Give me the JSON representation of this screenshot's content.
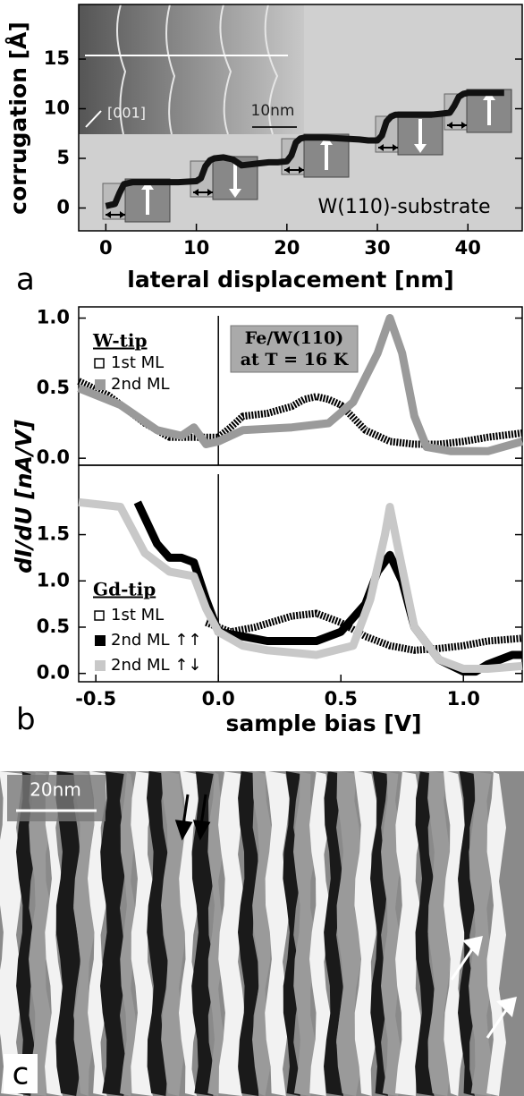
{
  "chart_data": [
    {
      "type": "line",
      "panel_label": "a",
      "x_label": "lateral displacement [nm]",
      "y_label": "corrugation [Å]",
      "annotation": "W(110)-substrate",
      "inset": {
        "direction_label": "[001]",
        "scale_bar": "10nm"
      },
      "xlim": [
        -3,
        46
      ],
      "ylim": [
        -2.3,
        20.5
      ],
      "xticks": [
        0,
        10,
        20,
        30,
        40
      ],
      "yticks": [
        0,
        5,
        10,
        15
      ],
      "x": [
        0,
        0.5,
        1,
        1.5,
        2,
        3,
        5,
        8,
        10,
        10.5,
        11,
        11.5,
        12,
        13,
        14,
        15,
        16,
        17,
        18,
        19,
        20,
        20.5,
        21,
        21.5,
        22,
        24,
        26,
        28,
        29,
        30,
        30.5,
        31,
        31.5,
        32,
        34,
        36,
        37,
        38,
        38.5,
        39,
        39.5,
        40,
        42,
        44
      ],
      "series": [
        {
          "color": "#111111",
          "values": [
            0.2,
            0.3,
            0.4,
            1.5,
            2.4,
            2.6,
            2.6,
            2.6,
            2.7,
            3.0,
            4.2,
            4.8,
            5.0,
            5.1,
            4.9,
            4.3,
            4.4,
            4.5,
            4.6,
            4.6,
            4.7,
            5.3,
            6.6,
            7.0,
            7.1,
            7.1,
            7.0,
            6.9,
            6.8,
            6.8,
            7.3,
            8.7,
            9.2,
            9.4,
            9.4,
            9.4,
            9.5,
            9.6,
            10.3,
            11.2,
            11.5,
            11.6,
            11.6,
            11.6
          ]
        }
      ]
    },
    {
      "type": "line",
      "y_label": "dI/dU [nA/V]",
      "legend_title": "W-tip",
      "annotation": [
        "Fe/W(110)",
        "at T = 16 K"
      ],
      "xlim": [
        -0.57,
        1.24
      ],
      "ylim": [
        -0.05,
        1.08
      ],
      "reference_x": 0,
      "yticks": [
        {
          "value": 0,
          "label": "0.0"
        },
        0.5,
        {
          "value": 1,
          "label": "1.0"
        }
      ],
      "series": [
        {
          "name": "1st ML",
          "color": "#000000",
          "marker": "open-square",
          "x": [
            -0.57,
            -0.45,
            -0.3,
            -0.2,
            -0.1,
            0,
            0.05,
            0.1,
            0.2,
            0.3,
            0.35,
            0.4,
            0.45,
            0.5,
            0.6,
            0.7,
            0.8,
            0.9,
            1.0,
            1.1,
            1.24
          ],
          "values": [
            0.55,
            0.45,
            0.25,
            0.15,
            0.15,
            0.15,
            0.22,
            0.3,
            0.32,
            0.37,
            0.42,
            0.44,
            0.42,
            0.38,
            0.2,
            0.12,
            0.1,
            0.1,
            0.12,
            0.15,
            0.18
          ]
        },
        {
          "name": "2nd ML",
          "color": "#9a9a9a",
          "marker": "filled-square",
          "x": [
            -0.57,
            -0.4,
            -0.25,
            -0.15,
            -0.1,
            -0.05,
            0,
            0.1,
            0.3,
            0.45,
            0.55,
            0.65,
            0.7,
            0.75,
            0.8,
            0.85,
            0.95,
            1.1,
            1.24
          ],
          "values": [
            0.5,
            0.38,
            0.2,
            0.16,
            0.22,
            0.1,
            0.12,
            0.2,
            0.22,
            0.25,
            0.4,
            0.75,
            1.0,
            0.75,
            0.3,
            0.08,
            0.05,
            0.05,
            0.12
          ]
        }
      ]
    },
    {
      "type": "line",
      "panel_label": "b",
      "x_label": "sample bias [V]",
      "legend_title": "Gd-tip",
      "xlim": [
        -0.57,
        1.24
      ],
      "ylim": [
        -0.09,
        2.25
      ],
      "reference_x": 0,
      "xticks": [
        -0.5,
        {
          "value": 0,
          "label": "0.0"
        },
        0.5,
        {
          "value": 1,
          "label": "1.0"
        }
      ],
      "yticks": [
        {
          "value": 0,
          "label": "0.0"
        },
        0.5,
        {
          "value": 1,
          "label": "1.0"
        },
        1.5
      ],
      "series": [
        {
          "name": "1st ML",
          "color": "#000000",
          "marker": "open-square",
          "x": [
            -0.05,
            0,
            0.05,
            0.15,
            0.3,
            0.4,
            0.5,
            0.6,
            0.7,
            0.8,
            0.9,
            1.0,
            1.1,
            1.24
          ],
          "values": [
            0.55,
            0.5,
            0.45,
            0.5,
            0.62,
            0.65,
            0.55,
            0.4,
            0.3,
            0.25,
            0.27,
            0.3,
            0.35,
            0.38
          ]
        },
        {
          "name": "2nd ML ↑↑",
          "color": "#000000",
          "marker": "filled-square",
          "x": [
            -0.33,
            -0.25,
            -0.2,
            -0.15,
            -0.1,
            -0.05,
            0,
            0.1,
            0.2,
            0.4,
            0.5,
            0.6,
            0.65,
            0.7,
            0.75,
            0.8,
            0.9,
            1.0,
            1.05,
            1.1,
            1.2,
            1.24
          ],
          "values": [
            1.85,
            1.4,
            1.25,
            1.25,
            1.2,
            0.8,
            0.45,
            0.4,
            0.35,
            0.35,
            0.45,
            0.75,
            1.1,
            1.28,
            1.0,
            0.5,
            0.15,
            0.02,
            0.02,
            0.1,
            0.2,
            0.2
          ]
        },
        {
          "name": "2nd ML ↑↓",
          "color": "#c8c8c8",
          "marker": "filled-square",
          "x": [
            -0.57,
            -0.4,
            -0.3,
            -0.2,
            -0.1,
            -0.05,
            0,
            0.1,
            0.2,
            0.4,
            0.55,
            0.62,
            0.68,
            0.7,
            0.73,
            0.8,
            0.9,
            1.0,
            1.1,
            1.24
          ],
          "values": [
            1.85,
            1.8,
            1.3,
            1.1,
            1.05,
            0.7,
            0.45,
            0.3,
            0.25,
            0.2,
            0.3,
            0.8,
            1.5,
            1.8,
            1.4,
            0.5,
            0.15,
            0.05,
            0.05,
            0.08
          ]
        }
      ]
    }
  ],
  "panel_c": {
    "panel_label": "c",
    "scale_bar": "20nm"
  }
}
